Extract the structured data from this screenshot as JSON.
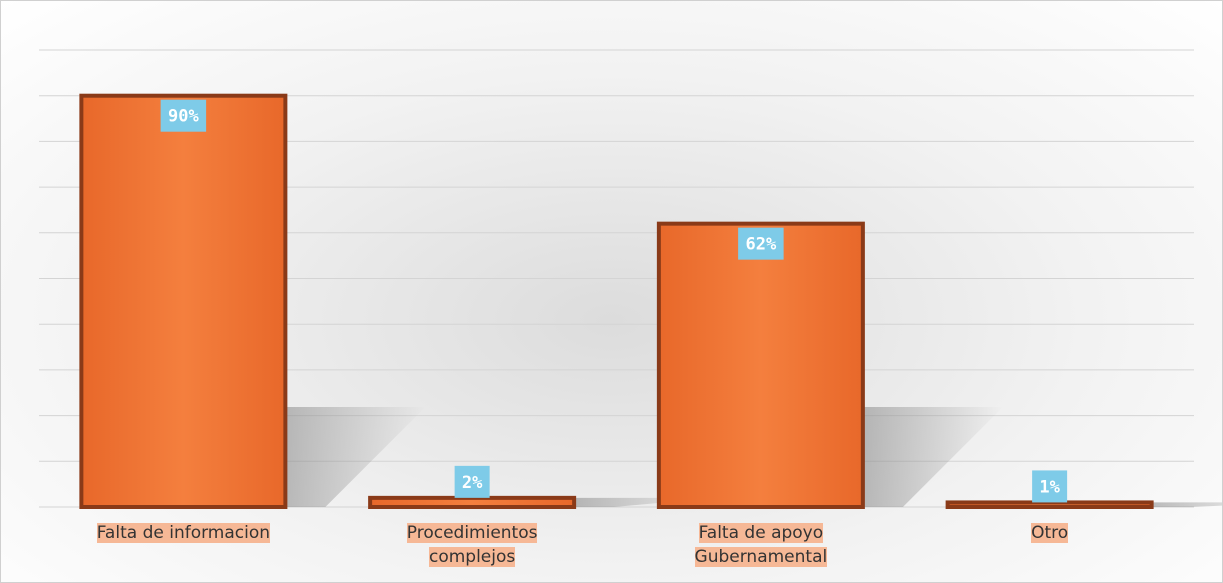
{
  "chart_data": {
    "type": "bar",
    "categories": [
      "Falta de informacion",
      "Procedimientos complejos",
      "Falta de apoyo Gubernamental",
      "Otro"
    ],
    "values": [
      90,
      2,
      62,
      1
    ],
    "value_labels": [
      "90%",
      "2%",
      "62%",
      "1%"
    ],
    "color": "#f07a3a",
    "ylim": [
      0,
      100
    ],
    "yticks": [
      0,
      10,
      20,
      30,
      40,
      50,
      60,
      70,
      80,
      90,
      100
    ],
    "grid": true
  }
}
